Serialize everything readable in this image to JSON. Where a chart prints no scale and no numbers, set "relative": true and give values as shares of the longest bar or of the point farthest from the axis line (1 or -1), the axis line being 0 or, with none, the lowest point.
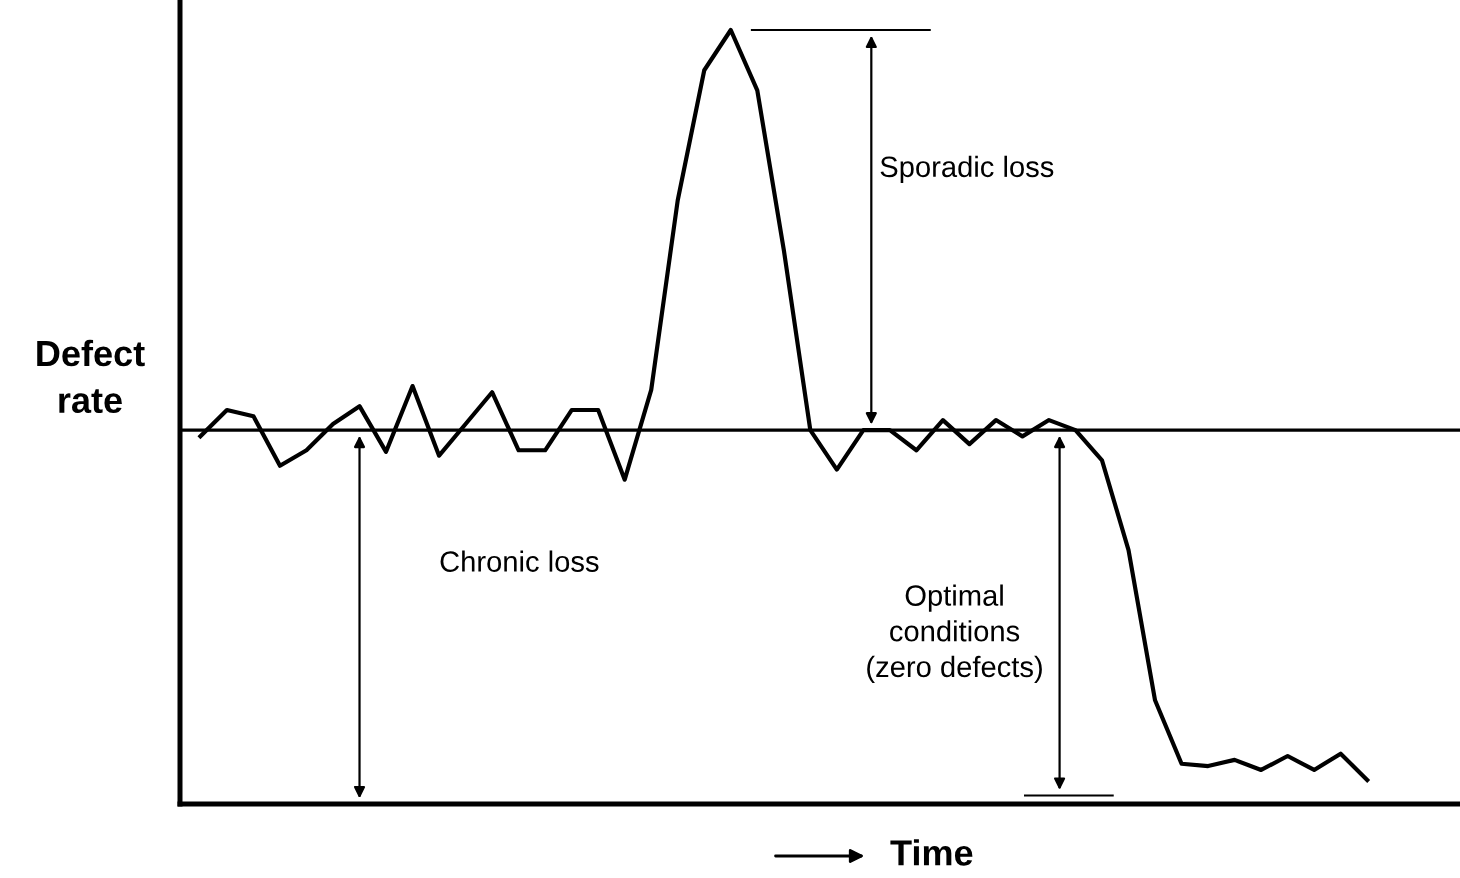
{
  "chart_data": {
    "type": "line",
    "relative": true,
    "ylabel": "Defect\nrate",
    "xlabel": "Time",
    "categories": [
      null,
      null,
      null,
      null,
      null,
      null,
      null,
      null,
      null,
      null,
      null,
      null,
      null,
      null,
      null,
      null,
      null,
      null,
      null,
      null,
      null,
      null,
      null,
      null,
      null,
      null,
      null,
      null,
      null,
      null,
      null,
      null,
      null,
      null,
      null,
      null,
      null,
      null,
      null,
      null,
      null,
      null,
      null,
      null,
      null
    ],
    "series": [
      {
        "color": "#000000",
        "values": [
          0.475,
          0.509,
          0.501,
          0.437,
          0.457,
          0.491,
          0.514,
          0.455,
          0.54,
          0.45,
          0.491,
          0.532,
          0.457,
          0.457,
          0.509,
          0.509,
          0.419,
          0.535,
          0.78,
          0.948,
          1.0,
          0.922,
          0.716,
          0.483,
          0.432,
          0.483,
          0.483,
          0.457,
          0.496,
          0.465,
          0.496,
          0.475,
          0.496,
          0.483,
          0.444,
          0.328,
          0.134,
          0.052,
          0.049,
          0.057,
          0.044,
          0.062,
          0.044,
          0.065,
          0.031
        ]
      }
    ],
    "ref_lines": [
      {
        "axis": "y",
        "value": 0.483,
        "color": "#000000"
      }
    ],
    "annotations": [
      "Sporadic loss",
      "Chronic loss",
      "Optimal\nconditions\n(zero defects)"
    ],
    "legend": false,
    "marker": "none",
    "line_style": "solid"
  }
}
